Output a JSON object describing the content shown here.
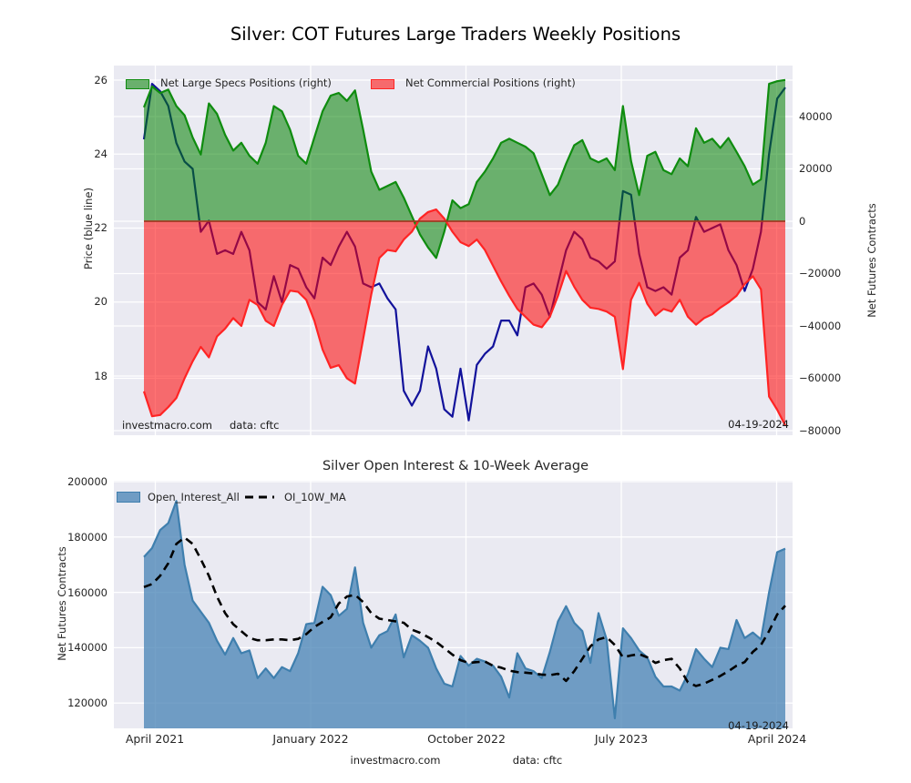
{
  "title": "Silver: COT Futures Large Traders Weekly Positions",
  "top_chart": {
    "legend": [
      {
        "label": "Net Large Specs Positions (right)",
        "swatch_color": "green"
      },
      {
        "label": "Net Commercial Positions (right)",
        "swatch_color": "red"
      }
    ],
    "left_axis": {
      "label": "Price (blue line)",
      "ticks": [
        "26",
        "24",
        "22",
        "20",
        "18"
      ]
    },
    "right_axis": {
      "label": "Net Futures Contracts",
      "ticks": [
        "40000",
        "20000",
        "0",
        "−20000",
        "−40000",
        "−60000",
        "−80000"
      ]
    },
    "annotations": {
      "source": "investmacro.com",
      "data_source": "data: cftc",
      "date": "04-19-2024"
    }
  },
  "bottom_chart": {
    "title": "Silver Open Interest & 10-Week Average",
    "legend": [
      {
        "label": "Open_Interest_All",
        "swatch_color": "steelblue"
      },
      {
        "label": "OI_10W_MA",
        "swatch_color": "black-dashed"
      }
    ],
    "left_axis": {
      "label": "Net Futures Contracts",
      "ticks": [
        "200000",
        "180000",
        "160000",
        "140000",
        "120000"
      ]
    },
    "x_axis": {
      "ticks": [
        "April 2021",
        "January 2022",
        "October 2022",
        "July 2023",
        "April 2024"
      ]
    },
    "annotations": {
      "date": "04-19-2024",
      "source": "investmacro.com",
      "data_source": "data: cftc"
    }
  },
  "colors": {
    "plot_bg": "#eaeaf2",
    "grid": "#ffffff",
    "green_fill": "rgba(0,128,0,0.55)",
    "green_edge": "#0f8c0f",
    "red_fill": "rgba(255,0,0,0.55)",
    "red_edge": "#ff2424",
    "zero_line": "#a03a22",
    "navy": "#12129b",
    "blue_fill": "rgba(70,130,180,0.75)",
    "blue_edge": "#3f7fae",
    "ma_line": "#000000",
    "text": "#262626"
  },
  "chart_data": [
    {
      "type": "area",
      "title": "Silver: COT Futures Large Traders Weekly Positions",
      "x_unit": "weeks since first point (early April 2021)",
      "x_step_weeks": 2,
      "x_last_date": "04-19-2024",
      "x_tick_labels": [
        "April 2021",
        "January 2022",
        "October 2022",
        "July 2023",
        "April 2024"
      ],
      "left_ylabel": "Price (blue line)",
      "left_ylim": [
        16.4,
        26.4
      ],
      "right_ylabel": "Net Futures Contracts",
      "right_ylim": [
        -81700,
        59500
      ],
      "grid": true,
      "legend_position": "upper left",
      "series": [
        {
          "name": "Net Large Specs Positions (right)",
          "style": "area",
          "axis": "right",
          "color": "green",
          "values": [
            43500,
            51500,
            49000,
            50300,
            44000,
            40500,
            32000,
            25500,
            45000,
            41000,
            33000,
            27000,
            30000,
            25000,
            22000,
            30000,
            44000,
            42000,
            35000,
            25000,
            22000,
            32000,
            42000,
            48000,
            49000,
            46000,
            50000,
            35000,
            19000,
            12000,
            13500,
            15000,
            9000,
            2000,
            -5000,
            -10000,
            -14000,
            -4000,
            8000,
            5000,
            6500,
            15000,
            19000,
            24000,
            30000,
            31500,
            30000,
            28500,
            26000,
            18000,
            10000,
            14000,
            22000,
            29000,
            31000,
            24000,
            22500,
            24000,
            19500,
            44000,
            23000,
            10000,
            25000,
            26500,
            19500,
            18000,
            24000,
            21000,
            35500,
            30000,
            31500,
            28000,
            31800,
            26500,
            21000,
            14000,
            16000,
            52500,
            53500,
            54000
          ]
        },
        {
          "name": "Net Commercial Positions (right)",
          "style": "area",
          "axis": "right",
          "color": "red",
          "values": [
            -65000,
            -74500,
            -74000,
            -71000,
            -67500,
            -60000,
            -53500,
            -48000,
            -52000,
            -44000,
            -41000,
            -37000,
            -40000,
            -30000,
            -32000,
            -38000,
            -40000,
            -32000,
            -26500,
            -27000,
            -30000,
            -38000,
            -49000,
            -56000,
            -55000,
            -60000,
            -62000,
            -45000,
            -28000,
            -14000,
            -11000,
            -11500,
            -7000,
            -4000,
            1000,
            3500,
            4500,
            1000,
            -4000,
            -8000,
            -9500,
            -7000,
            -11000,
            -17000,
            -23000,
            -28500,
            -33500,
            -36500,
            -39500,
            -40500,
            -36500,
            -28500,
            -19000,
            -25000,
            -30000,
            -33000,
            -33500,
            -34500,
            -36500,
            -56500,
            -30000,
            -23500,
            -31500,
            -36000,
            -33500,
            -34500,
            -30000,
            -36500,
            -39500,
            -37000,
            -35500,
            -33000,
            -31000,
            -28500,
            -24000,
            -21000,
            -26000,
            -67000,
            -72000,
            -78000
          ]
        },
        {
          "name": "Silver Price (blue line)",
          "style": "line",
          "axis": "left",
          "color": "navy",
          "values": [
            24.4,
            25.9,
            25.7,
            25.3,
            24.3,
            23.8,
            23.6,
            21.9,
            22.2,
            21.3,
            21.4,
            21.3,
            21.9,
            21.4,
            20.0,
            19.8,
            20.7,
            20.0,
            21.0,
            20.9,
            20.4,
            20.1,
            21.2,
            21.0,
            21.5,
            21.9,
            21.5,
            20.5,
            20.4,
            20.5,
            20.1,
            19.8,
            17.6,
            17.2,
            17.6,
            18.8,
            18.2,
            17.1,
            16.9,
            18.2,
            16.8,
            18.3,
            18.6,
            18.8,
            19.5,
            19.5,
            19.1,
            20.4,
            20.5,
            20.2,
            19.6,
            20.5,
            21.4,
            21.9,
            21.7,
            21.2,
            21.1,
            20.9,
            21.1,
            23.0,
            22.9,
            21.3,
            20.4,
            20.3,
            20.4,
            20.2,
            21.2,
            21.4,
            22.3,
            21.9,
            22.0,
            22.1,
            21.4,
            21.0,
            20.3,
            20.9,
            21.9,
            24.0,
            25.5,
            25.8
          ]
        }
      ],
      "annotations": [
        "investmacro.com",
        "data: cftc",
        "04-19-2024"
      ]
    },
    {
      "type": "area",
      "title": "Silver Open Interest & 10-Week Average",
      "x_step_weeks": 2,
      "x_tick_labels": [
        "April 2021",
        "January 2022",
        "October 2022",
        "July 2023",
        "April 2024"
      ],
      "ylabel": "Net Futures Contracts",
      "ylim": [
        110900,
        200300
      ],
      "grid": true,
      "legend_position": "upper left",
      "series": [
        {
          "name": "Open_Interest_All",
          "style": "area",
          "color": "steelblue",
          "values": [
            172800,
            176000,
            182500,
            185000,
            193000,
            170000,
            157000,
            153000,
            149000,
            142500,
            137500,
            143500,
            138000,
            139000,
            129000,
            132500,
            129000,
            133000,
            131500,
            138000,
            148500,
            149000,
            162000,
            159000,
            151500,
            154000,
            169000,
            149000,
            140000,
            144500,
            146000,
            152000,
            136500,
            144500,
            142500,
            140000,
            132500,
            127000,
            126000,
            137000,
            133500,
            136000,
            135000,
            133500,
            129500,
            122000,
            138000,
            132500,
            131500,
            129000,
            138500,
            149500,
            155000,
            149000,
            146000,
            134500,
            152500,
            143000,
            114500,
            147000,
            143500,
            139000,
            136500,
            129500,
            126000,
            126000,
            124500,
            130500,
            139500,
            136000,
            133000,
            140000,
            139500,
            150000,
            143500,
            145500,
            143000,
            160000,
            174500,
            175800
          ]
        },
        {
          "name": "OI_10W_MA",
          "style": "dashed-line",
          "color": "black",
          "values": [
            161900,
            163000,
            166000,
            170500,
            177500,
            179800,
            177500,
            172000,
            166000,
            158500,
            152500,
            148500,
            146000,
            143500,
            142700,
            142700,
            143000,
            143000,
            142700,
            143200,
            144900,
            147500,
            149300,
            151000,
            156000,
            158500,
            159100,
            156500,
            152500,
            150500,
            150000,
            149500,
            149000,
            146500,
            145400,
            143800,
            142100,
            139800,
            137500,
            135500,
            134500,
            134800,
            135000,
            133500,
            132800,
            131700,
            131200,
            131000,
            130700,
            130300,
            130100,
            130600,
            128000,
            131500,
            136000,
            140500,
            143000,
            143800,
            141000,
            136500,
            137200,
            137700,
            136500,
            134500,
            135500,
            136000,
            132500,
            127500,
            126200,
            127000,
            128400,
            129800,
            131500,
            133500,
            134800,
            138500,
            141000,
            146000,
            152000,
            155200
          ]
        }
      ],
      "annotations": [
        "04-19-2024",
        "investmacro.com",
        "data: cftc"
      ]
    }
  ]
}
